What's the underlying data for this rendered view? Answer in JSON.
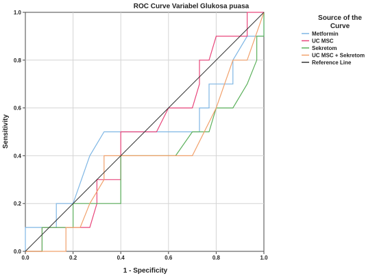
{
  "chart_data": {
    "type": "line",
    "title": "ROC Curve Variabel Glukosa puasa",
    "xlabel": "1 - Specificity",
    "ylabel": "Sensitivity",
    "xlim": [
      0,
      1
    ],
    "ylim": [
      0,
      1
    ],
    "xticks": [
      "0.0",
      "0.2",
      "0.4",
      "0.6",
      "0.8",
      "1.0"
    ],
    "yticks": [
      "0.0",
      "0.2",
      "0.4",
      "0.6",
      "0.8",
      "1.0"
    ],
    "grid": true,
    "legend": {
      "title_line1": "Source of the",
      "title_line2": "Curve",
      "position": "right"
    },
    "series": [
      {
        "name": "Metformin",
        "color": "#7eb6e4",
        "points": [
          [
            0,
            0
          ],
          [
            0,
            0.1
          ],
          [
            0.13,
            0.1
          ],
          [
            0.13,
            0.2
          ],
          [
            0.2,
            0.2
          ],
          [
            0.27,
            0.4
          ],
          [
            0.33,
            0.5
          ],
          [
            0.67,
            0.5
          ],
          [
            0.73,
            0.5
          ],
          [
            0.73,
            0.6
          ],
          [
            0.77,
            0.6
          ],
          [
            0.77,
            0.7
          ],
          [
            0.87,
            0.7
          ],
          [
            0.87,
            0.8
          ],
          [
            0.93,
            0.9
          ],
          [
            1,
            0.9
          ],
          [
            1,
            1
          ]
        ]
      },
      {
        "name": "UC MSC",
        "color": "#e8457a",
        "points": [
          [
            0,
            0
          ],
          [
            0.07,
            0
          ],
          [
            0.07,
            0.1
          ],
          [
            0.27,
            0.1
          ],
          [
            0.3,
            0.2
          ],
          [
            0.3,
            0.3
          ],
          [
            0.4,
            0.3
          ],
          [
            0.4,
            0.4
          ],
          [
            0.4,
            0.5
          ],
          [
            0.55,
            0.5
          ],
          [
            0.6,
            0.6
          ],
          [
            0.7,
            0.6
          ],
          [
            0.73,
            0.7
          ],
          [
            0.73,
            0.8
          ],
          [
            0.77,
            0.8
          ],
          [
            0.8,
            0.9
          ],
          [
            0.93,
            0.9
          ],
          [
            0.93,
            1
          ],
          [
            1,
            1
          ]
        ]
      },
      {
        "name": "Sekretom",
        "color": "#5bb05b",
        "points": [
          [
            0,
            0
          ],
          [
            0.07,
            0
          ],
          [
            0.07,
            0.1
          ],
          [
            0.2,
            0.1
          ],
          [
            0.2,
            0.2
          ],
          [
            0.4,
            0.2
          ],
          [
            0.4,
            0.4
          ],
          [
            0.63,
            0.4
          ],
          [
            0.7,
            0.5
          ],
          [
            0.77,
            0.5
          ],
          [
            0.8,
            0.6
          ],
          [
            0.87,
            0.6
          ],
          [
            0.93,
            0.7
          ],
          [
            0.97,
            0.8
          ],
          [
            0.97,
            0.9
          ],
          [
            1,
            0.9
          ],
          [
            1,
            1
          ]
        ]
      },
      {
        "name": "UC MSC + Sekretom",
        "color": "#f1a06a",
        "points": [
          [
            0,
            0
          ],
          [
            0.17,
            0
          ],
          [
            0.17,
            0.1
          ],
          [
            0.23,
            0.1
          ],
          [
            0.27,
            0.2
          ],
          [
            0.33,
            0.3
          ],
          [
            0.33,
            0.4
          ],
          [
            0.7,
            0.4
          ],
          [
            0.8,
            0.6
          ],
          [
            0.87,
            0.8
          ],
          [
            0.93,
            0.8
          ],
          [
            1,
            1
          ]
        ]
      },
      {
        "name": "Reference Line",
        "color": "#333333",
        "points": [
          [
            0,
            0
          ],
          [
            1,
            1
          ]
        ]
      }
    ]
  }
}
